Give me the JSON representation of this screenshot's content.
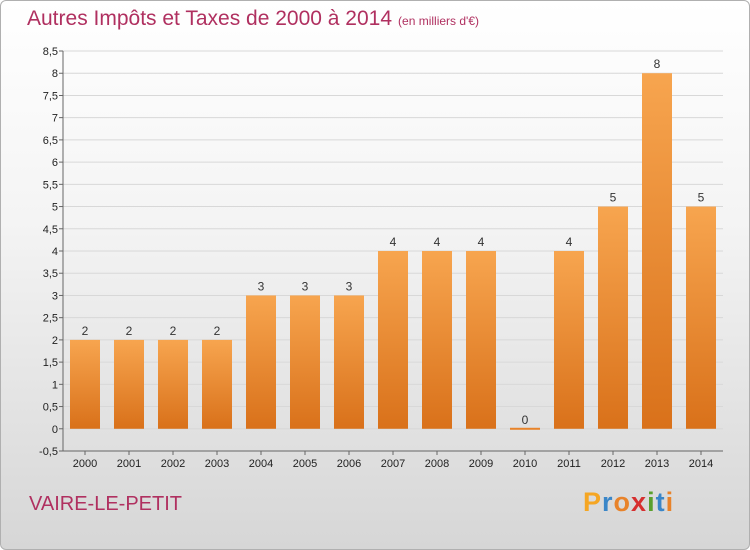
{
  "title": "Autres Impôts et Taxes de 2000 à 2014",
  "unit": "(en milliers d'€)",
  "place": "VAIRE-LE-PETIT",
  "logo": {
    "letters": [
      "P",
      "r",
      "o",
      "x",
      "i",
      "t",
      "i"
    ],
    "colors": [
      "#f5a623",
      "#3a86c8",
      "#e8832a",
      "#d62f2f",
      "#5aa02c",
      "#3a86c8",
      "#e8832a"
    ]
  },
  "chart_data": {
    "type": "bar",
    "title": "Autres Impôts et Taxes de 2000 à 2014",
    "subtitle": "(en milliers d'€)",
    "categories": [
      "2000",
      "2001",
      "2002",
      "2003",
      "2004",
      "2005",
      "2006",
      "2007",
      "2008",
      "2009",
      "2010",
      "2011",
      "2012",
      "2013",
      "2014"
    ],
    "values": [
      2,
      2,
      2,
      2,
      3,
      3,
      3,
      4,
      4,
      4,
      0,
      4,
      5,
      8,
      5
    ],
    "data_labels": [
      "2",
      "2",
      "2",
      "2",
      "3",
      "3",
      "3",
      "4",
      "4",
      "4",
      "0",
      "4",
      "5",
      "8",
      "5"
    ],
    "ylim": [
      -0.5,
      8.5
    ],
    "yticks": [
      "-0,5",
      "0",
      "0,5",
      "1",
      "1,5",
      "2",
      "2,5",
      "3",
      "3,5",
      "4",
      "4,5",
      "5",
      "5,5",
      "6",
      "6,5",
      "7",
      "7,5",
      "8",
      "8,5"
    ],
    "ytick_values": [
      -0.5,
      0,
      0.5,
      1,
      1.5,
      2,
      2.5,
      3,
      3.5,
      4,
      4.5,
      5,
      5.5,
      6,
      6.5,
      7,
      7.5,
      8,
      8.5
    ],
    "grid": "horizontal",
    "bar_color": "#f0923a"
  }
}
